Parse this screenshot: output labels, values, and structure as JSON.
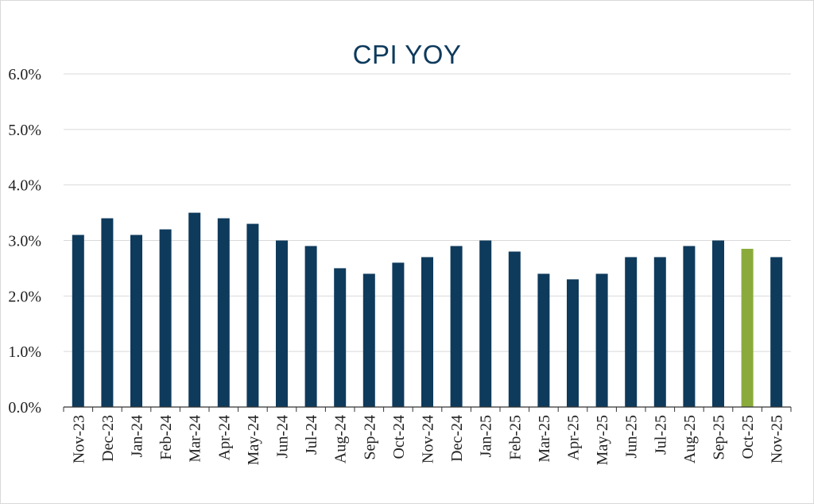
{
  "chart_data": {
    "type": "bar",
    "title": "CPI YOY",
    "xlabel": "",
    "ylabel": "",
    "ylim": [
      0,
      6.0
    ],
    "yticks": [
      "0.0%",
      "1.0%",
      "2.0%",
      "3.0%",
      "4.0%",
      "5.0%",
      "6.0%"
    ],
    "grid": true,
    "categories": [
      "Nov-23",
      "Dec-23",
      "Jan-24",
      "Feb-24",
      "Mar-24",
      "Apr-24",
      "May-24",
      "Jun-24",
      "Jul-24",
      "Aug-24",
      "Sep-24",
      "Oct-24",
      "Nov-24",
      "Dec-24",
      "Jan-25",
      "Feb-25",
      "Mar-25",
      "Apr-25",
      "May-25",
      "Jun-25",
      "Jul-25",
      "Aug-25",
      "Sep-25",
      "Oct-25",
      "Nov-25"
    ],
    "values": [
      3.1,
      3.4,
      3.1,
      3.2,
      3.5,
      3.4,
      3.3,
      3.0,
      2.9,
      2.5,
      2.4,
      2.6,
      2.7,
      2.9,
      3.0,
      2.8,
      2.4,
      2.3,
      2.4,
      2.7,
      2.7,
      2.9,
      3.0,
      2.85,
      2.7
    ],
    "highlight_index": 23,
    "colors": {
      "bar": "#0e3a5c",
      "highlight": "#8aab3c",
      "grid": "#d9d9d9",
      "axis": "#333333"
    }
  }
}
